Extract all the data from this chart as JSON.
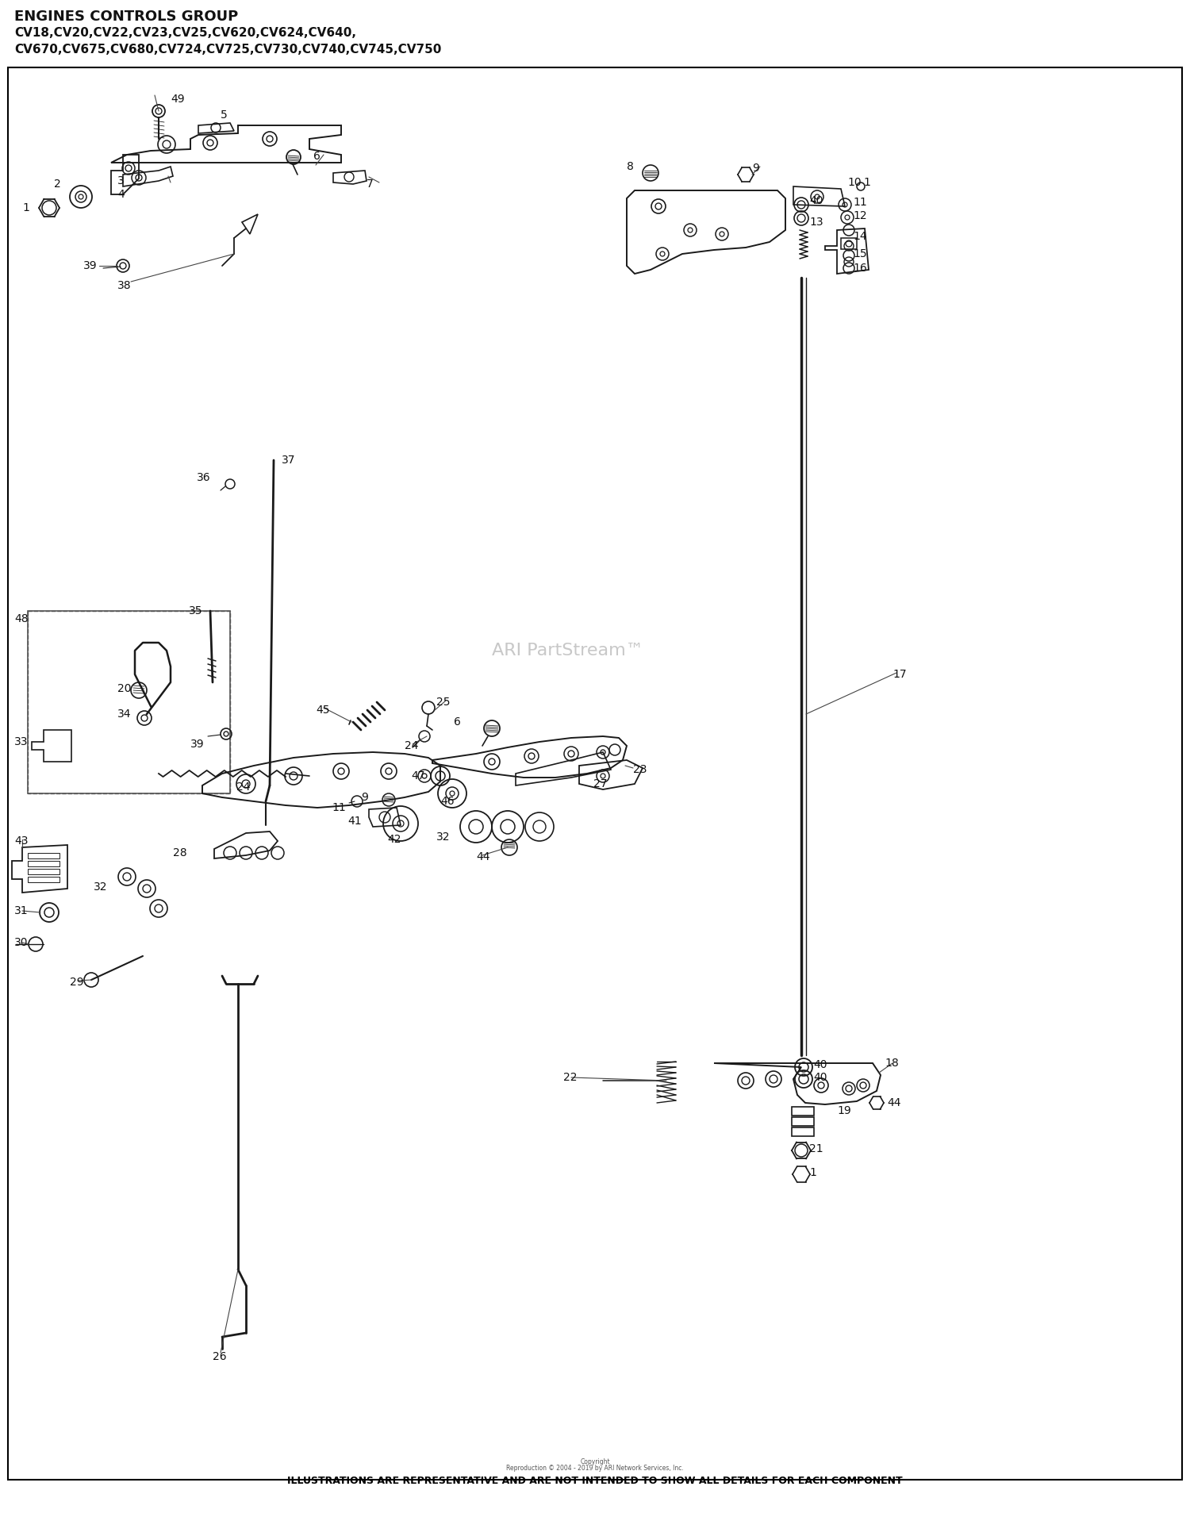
{
  "title_line1": "ENGINES CONTROLS GROUP",
  "title_line2": "CV18,CV20,CV22,CV23,CV25,CV620,CV624,CV640,",
  "title_line3": "CV670,CV675,CV680,CV724,CV725,CV730,CV740,CV745,CV750",
  "watermark": "ARI PartStream™",
  "footer_small1": "Copyright",
  "footer_small2": "Reproduction © 2004 - 2019 by ARI Network Services, Inc.",
  "footer_bold": "ILLUSTRATIONS ARE REPRESENTATIVE AND ARE NOT INTENDED TO SHOW ALL DETAILS FOR EACH COMPONENT",
  "bg_color": "#ffffff",
  "figsize": [
    15.0,
    19.12
  ],
  "dpi": 100
}
